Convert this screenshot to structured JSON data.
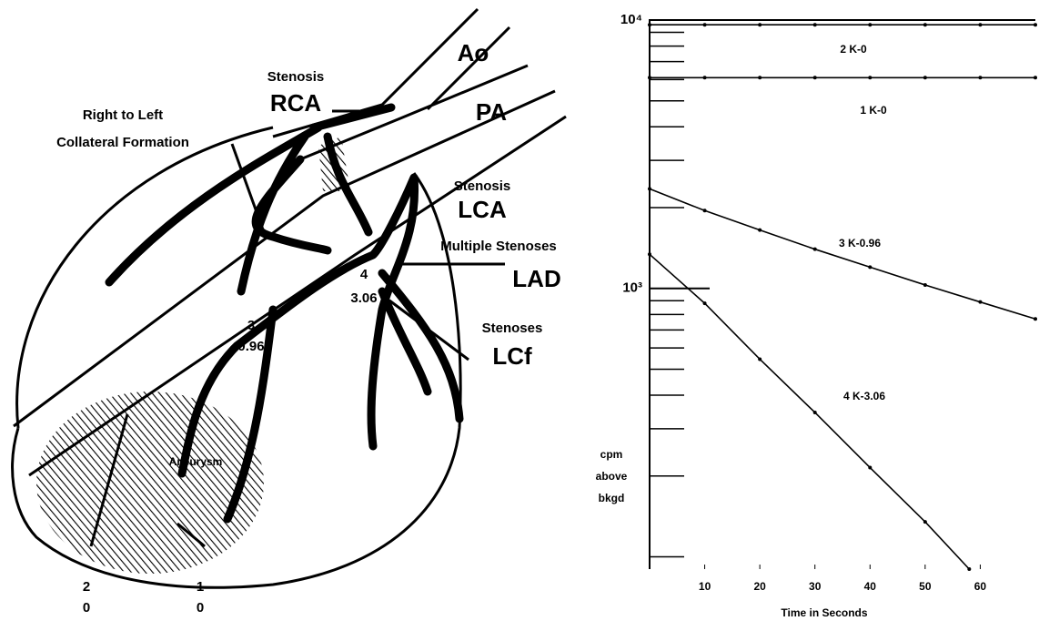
{
  "diagram": {
    "labels": [
      "Ao",
      "PA",
      "Stenosis",
      "RCA",
      "Right to Left",
      "Collateral Formation",
      "Stenosis",
      "LCA",
      "Multiple Stenoses",
      "LAD",
      "4",
      "3.06",
      "3",
      "0.96",
      "Stenoses",
      "LCf",
      "Aneurysm",
      "2",
      "0",
      "1",
      "0"
    ]
  },
  "chart_data": {
    "type": "line",
    "log_scale": true,
    "x_label": "Time in Seconds",
    "y_label": [
      "cpm",
      "above",
      "bkgd"
    ],
    "xlim": [
      0,
      70
    ],
    "ylim": [
      90,
      10000
    ],
    "xticks": [
      10,
      20,
      30,
      40,
      50,
      60
    ],
    "yticks": [
      {
        "value": 1000,
        "label": "10³"
      },
      {
        "value": 10000,
        "label": "10⁴"
      }
    ],
    "yminor": [
      100,
      200,
      300,
      400,
      500,
      600,
      700,
      800,
      900,
      2000,
      3000,
      4000,
      5000,
      6000,
      7000,
      8000,
      9000
    ],
    "color": "#000000",
    "series": [
      {
        "name": "2 K-0",
        "x": [
          0,
          10,
          20,
          30,
          40,
          50,
          60,
          70
        ],
        "values": [
          9600,
          9600,
          9600,
          9600,
          9600,
          9600,
          9600,
          9600
        ]
      },
      {
        "name": "1 K-0",
        "x": [
          0,
          10,
          20,
          30,
          40,
          50,
          60,
          70
        ],
        "values": [
          6100,
          6100,
          6100,
          6100,
          6100,
          6100,
          6100,
          6100
        ]
      },
      {
        "name": "3 K-0.96",
        "x": [
          0,
          10,
          20,
          30,
          40,
          50,
          60,
          70
        ],
        "values": [
          2350,
          1950,
          1650,
          1400,
          1200,
          1030,
          890,
          770
        ]
      },
      {
        "name": "4 K-3.06",
        "x": [
          0,
          10,
          20,
          30,
          40,
          50,
          58
        ],
        "values": [
          1340,
          880,
          545,
          345,
          215,
          135,
          90
        ]
      }
    ]
  }
}
